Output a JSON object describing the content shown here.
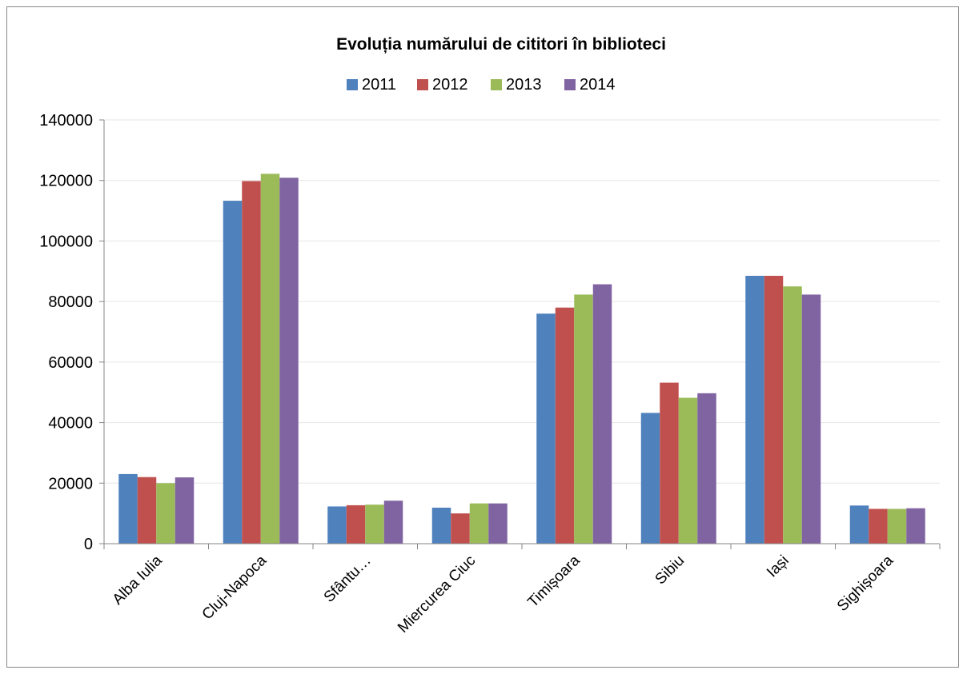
{
  "chart_data": {
    "type": "bar",
    "title": "Evoluția numărului de cititori în biblioteci",
    "xlabel": "",
    "ylabel": "",
    "ylim": [
      0,
      140000
    ],
    "yticks": [
      0,
      20000,
      40000,
      60000,
      80000,
      100000,
      120000,
      140000
    ],
    "grid": true,
    "legend_position": "top",
    "categories": [
      "Alba Iulia",
      "Cluj-Napoca",
      "Sfântu…",
      "Miercurea Ciuc",
      "Timișoara",
      "Sibiu",
      "Iași",
      "Sighișoara"
    ],
    "series": [
      {
        "name": "2011",
        "color": "#4f81bd",
        "values": [
          23000,
          113300,
          12300,
          11900,
          76000,
          43200,
          88500,
          12600
        ]
      },
      {
        "name": "2012",
        "color": "#c0504d",
        "values": [
          22000,
          119800,
          12700,
          10000,
          78000,
          53200,
          88500,
          11500
        ]
      },
      {
        "name": "2013",
        "color": "#9bbb59",
        "values": [
          20000,
          122200,
          12900,
          13300,
          82300,
          48200,
          85000,
          11500
        ]
      },
      {
        "name": "2014",
        "color": "#8064a2",
        "values": [
          21900,
          120900,
          14200,
          13300,
          85700,
          49700,
          82300,
          11700
        ]
      }
    ]
  }
}
